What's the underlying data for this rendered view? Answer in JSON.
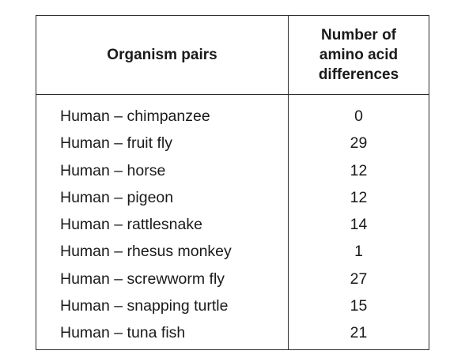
{
  "table": {
    "headers": {
      "pairs": "Organism pairs",
      "differences_lines": [
        "Number of",
        "amino acid",
        "differences"
      ]
    },
    "rows": [
      {
        "pair": "Human – chimpanzee",
        "value": "0"
      },
      {
        "pair": "Human – fruit fly",
        "value": "29"
      },
      {
        "pair": "Human – horse",
        "value": "12"
      },
      {
        "pair": "Human – pigeon",
        "value": "12"
      },
      {
        "pair": "Human – rattlesnake",
        "value": "14"
      },
      {
        "pair": "Human – rhesus monkey",
        "value": "1"
      },
      {
        "pair": "Human – screwworm fly",
        "value": "27"
      },
      {
        "pair": "Human – snapping turtle",
        "value": "15"
      },
      {
        "pair": "Human – tuna fish",
        "value": "21"
      }
    ]
  }
}
